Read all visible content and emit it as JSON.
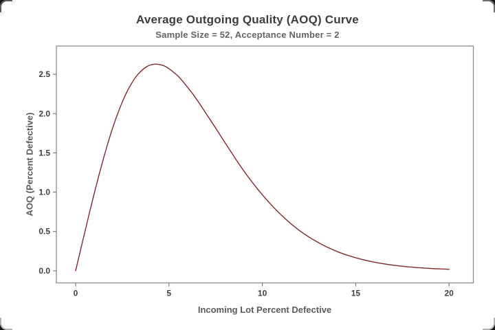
{
  "chart_data": {
    "type": "line",
    "title": "Average Outgoing Quality (AOQ) Curve",
    "subtitle": "Sample Size = 52, Acceptance Number = 2",
    "xlabel": "Incoming Lot Percent Defective",
    "ylabel": "AOQ (Percent Defective)",
    "sample_size": 52,
    "acceptance_number": 2,
    "aoql_peak": {
      "x": 4.35,
      "y": 2.63
    },
    "xlim": [
      -1.03,
      21.3
    ],
    "ylim": [
      -0.155,
      2.86
    ],
    "x_ticks": [
      {
        "value": 0,
        "label": "0"
      },
      {
        "value": 5,
        "label": "5"
      },
      {
        "value": 10,
        "label": "10"
      },
      {
        "value": 15,
        "label": "15"
      },
      {
        "value": 20,
        "label": "20"
      }
    ],
    "y_ticks": [
      {
        "value": 0,
        "label": "0.0"
      },
      {
        "value": 0.5,
        "label": "0.5"
      },
      {
        "value": 1,
        "label": "1.0"
      },
      {
        "value": 1.5,
        "label": "1.5"
      },
      {
        "value": 2,
        "label": "2.0"
      },
      {
        "value": 2.5,
        "label": "2.5"
      }
    ],
    "grid": "off",
    "legend": "none",
    "series": [
      {
        "name": "AOQ",
        "x": [
          0,
          0.25,
          0.5,
          0.75,
          1,
          1.25,
          1.5,
          1.75,
          2,
          2.25,
          2.5,
          2.75,
          3,
          3.25,
          3.5,
          3.75,
          4,
          4.25,
          4.5,
          4.75,
          5,
          5.5,
          6,
          6.5,
          7,
          7.5,
          8,
          9,
          10,
          11,
          12,
          13,
          14,
          15,
          16,
          17,
          18,
          19,
          20
        ],
        "y": [
          0,
          0.25,
          0.499,
          0.745,
          0.985,
          1.216,
          1.435,
          1.64,
          1.828,
          1.998,
          2.148,
          2.278,
          2.386,
          2.475,
          2.54,
          2.589,
          2.619,
          2.63,
          2.624,
          2.607,
          2.572,
          2.474,
          2.335,
          2.176,
          1.996,
          1.816,
          1.63,
          1.273,
          0.967,
          0.712,
          0.509,
          0.358,
          0.245,
          0.165,
          0.109,
          0.071,
          0.045,
          0.029,
          0.018
        ]
      }
    ],
    "colors": {
      "line": "#7d2a2b",
      "frame": "#8a8a8a",
      "tick": "#7f7f7f",
      "tick_text": "#3f3f3f",
      "title_text": "#3d3d3d",
      "subtitle_text": "#636363",
      "axis_label_text": "#5a5a5a",
      "background": "#ffffff"
    }
  }
}
